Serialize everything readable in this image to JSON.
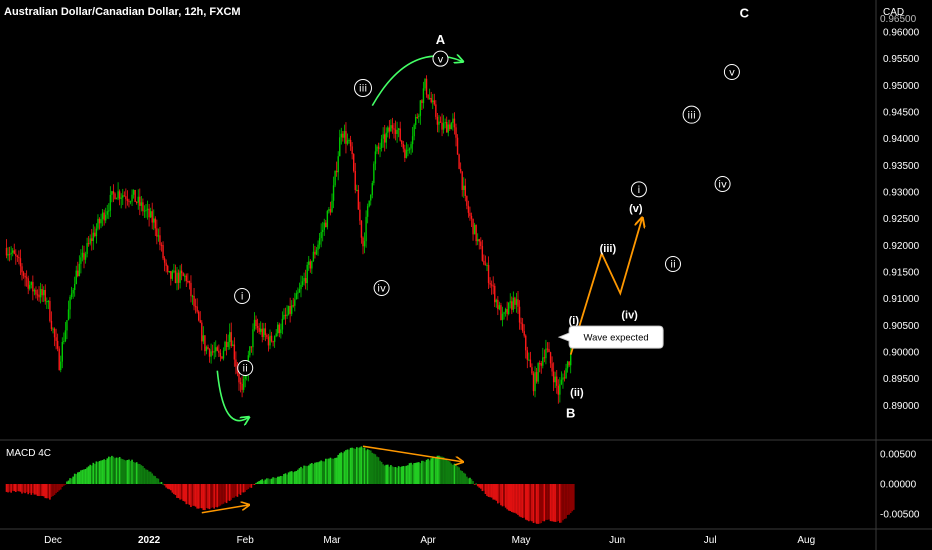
{
  "header": {
    "title": "Australian Dollar/Canadian Dollar, 12h, FXCM",
    "currency": "CAD",
    "top_price_partial": "0.96500"
  },
  "colors": {
    "background": "#000000",
    "bull": "#00c800",
    "bear": "#ff1a1a",
    "macd_pos": "#22cc22",
    "macd_neg": "#e01010",
    "accent_orange": "#ff9800",
    "arrow_green": "#44ff66",
    "divider": "#444444"
  },
  "chart_data": [
    {
      "type": "candlestick",
      "title": "Australian Dollar/Canadian Dollar, 12h, FXCM",
      "ylabel": "CAD",
      "ylim": [
        0.8835,
        0.966
      ],
      "yticks": [
        0.89,
        0.895,
        0.9,
        0.905,
        0.91,
        0.915,
        0.92,
        0.925,
        0.93,
        0.935,
        0.94,
        0.945,
        0.95,
        0.955,
        0.96
      ],
      "ytick_labels": [
        "0.89000",
        "0.89500",
        "0.90000",
        "0.90500",
        "0.91000",
        "0.91500",
        "0.92000",
        "0.92500",
        "0.93000",
        "0.93500",
        "0.94000",
        "0.94500",
        "0.95000",
        "0.95500",
        "0.96000"
      ],
      "x_labels": [
        "Dec",
        "2022",
        "Feb",
        "Mar",
        "Apr",
        "May",
        "Jun",
        "Jul",
        "Aug"
      ],
      "path_keypoints": {
        "dates": [
          "2021-11-16",
          "2021-11-19",
          "2021-11-24",
          "2021-11-29",
          "2021-12-03",
          "2021-12-08",
          "2021-12-14",
          "2021-12-21",
          "2021-12-27",
          "2022-01-03",
          "2022-01-07",
          "2022-01-13",
          "2022-01-19",
          "2022-01-24",
          "2022-01-27",
          "2022-01-31",
          "2022-02-04",
          "2022-02-09",
          "2022-02-17",
          "2022-02-23",
          "2022-03-01",
          "2022-03-04",
          "2022-03-07",
          "2022-03-11",
          "2022-03-15",
          "2022-03-21",
          "2022-03-25",
          "2022-03-31",
          "2022-04-05",
          "2022-04-09",
          "2022-04-13",
          "2022-04-19",
          "2022-04-25",
          "2022-04-29",
          "2022-05-05",
          "2022-05-09",
          "2022-05-13",
          "2022-05-17"
        ],
        "values": [
          0.9195,
          0.9175,
          0.912,
          0.91,
          0.898,
          0.914,
          0.922,
          0.93,
          0.929,
          0.924,
          0.914,
          0.914,
          0.901,
          0.899,
          0.904,
          0.892,
          0.905,
          0.902,
          0.909,
          0.918,
          0.928,
          0.942,
          0.938,
          0.92,
          0.937,
          0.943,
          0.937,
          0.95,
          0.942,
          0.943,
          0.928,
          0.917,
          0.906,
          0.91,
          0.894,
          0.901,
          0.8925,
          0.8995
        ]
      },
      "projection": {
        "dates": [
          "2022-05-17",
          "2022-05-27",
          "2022-06-02",
          "2022-06-09"
        ],
        "values": [
          0.8995,
          0.9185,
          0.911,
          0.925
        ]
      },
      "wave_labels": [
        {
          "text": "A",
          "date": "2022-04-05",
          "value": 0.9585,
          "style": "plain"
        },
        {
          "text": "v",
          "date": "2022-04-05",
          "value": 0.955,
          "style": "circle"
        },
        {
          "text": "iii",
          "date": "2022-03-11",
          "value": 0.9495,
          "style": "circle"
        },
        {
          "text": "iv",
          "date": "2022-03-17",
          "value": 0.912,
          "style": "circle"
        },
        {
          "text": "i",
          "date": "2022-01-31",
          "value": 0.9105,
          "style": "circle"
        },
        {
          "text": "ii",
          "date": "2022-02-01",
          "value": 0.897,
          "style": "circle"
        },
        {
          "text": "(i)",
          "date": "2022-05-18",
          "value": 0.906,
          "style": "plain"
        },
        {
          "text": "(ii)",
          "date": "2022-05-19",
          "value": 0.8925,
          "style": "plain"
        },
        {
          "text": "B",
          "date": "2022-05-17",
          "value": 0.8885,
          "style": "plain"
        },
        {
          "text": "(iii)",
          "date": "2022-05-29",
          "value": 0.9195,
          "style": "plain"
        },
        {
          "text": "(iv)",
          "date": "2022-06-05",
          "value": 0.907,
          "style": "plain"
        },
        {
          "text": "(v)",
          "date": "2022-06-07",
          "value": 0.927,
          "style": "plain"
        },
        {
          "text": "i",
          "date": "2022-06-08",
          "value": 0.9305,
          "style": "circle"
        },
        {
          "text": "ii",
          "date": "2022-06-19",
          "value": 0.9165,
          "style": "circle"
        },
        {
          "text": "iii",
          "date": "2022-06-25",
          "value": 0.9445,
          "style": "circle"
        },
        {
          "text": "iv",
          "date": "2022-07-05",
          "value": 0.9315,
          "style": "circle"
        },
        {
          "text": "v",
          "date": "2022-07-08",
          "value": 0.9525,
          "style": "circle"
        },
        {
          "text": "C",
          "date": "2022-07-12",
          "value": 0.9635,
          "style": "plain"
        }
      ],
      "callout": {
        "text": "Wave expected",
        "date": "2022-05-31",
        "value": 0.9028
      }
    },
    {
      "type": "histogram",
      "title": "MACD 4C",
      "ylim": [
        -0.0072,
        0.0072
      ],
      "yticks": [
        0.005,
        0.0,
        -0.005
      ],
      "ytick_labels": [
        "0.00500",
        "0.00000",
        "-0.00500"
      ],
      "keypoints": {
        "dates": [
          "2021-11-16",
          "2021-11-20",
          "2021-11-26",
          "2021-11-30",
          "2021-12-03",
          "2021-12-08",
          "2021-12-14",
          "2021-12-20",
          "2021-12-27",
          "2022-01-01",
          "2022-01-05",
          "2022-01-10",
          "2022-01-14",
          "2022-01-19",
          "2022-01-23",
          "2022-01-27",
          "2022-02-01",
          "2022-02-06",
          "2022-02-12",
          "2022-02-17",
          "2022-02-22",
          "2022-03-02",
          "2022-03-06",
          "2022-03-10",
          "2022-03-14",
          "2022-03-18",
          "2022-03-22",
          "2022-03-27",
          "2022-03-31",
          "2022-04-04",
          "2022-04-07",
          "2022-04-11",
          "2022-04-15",
          "2022-04-20",
          "2022-04-25",
          "2022-04-30",
          "2022-05-06",
          "2022-05-10",
          "2022-05-14",
          "2022-05-18"
        ],
        "values": [
          -0.0012,
          -0.0014,
          -0.0018,
          -0.0026,
          -0.001,
          0.0016,
          0.0034,
          0.0046,
          0.0038,
          0.0022,
          0.0002,
          -0.0022,
          -0.0036,
          -0.0042,
          -0.0038,
          -0.0028,
          -0.0012,
          0.0006,
          0.0012,
          0.0022,
          0.0034,
          0.0044,
          0.0058,
          0.0062,
          0.0054,
          0.0032,
          0.0028,
          0.0034,
          0.0038,
          0.0046,
          0.0042,
          0.0026,
          0.0006,
          -0.0018,
          -0.0036,
          -0.0052,
          -0.0066,
          -0.006,
          -0.0064,
          -0.0042
        ]
      }
    }
  ],
  "macd_label": "MACD 4C"
}
